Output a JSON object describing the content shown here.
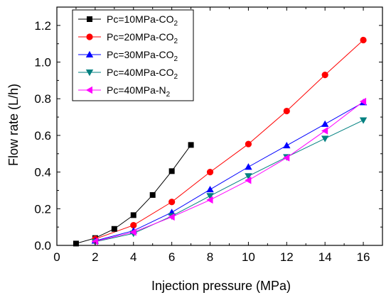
{
  "chart_data": {
    "type": "line",
    "xlabel": "Injection pressure (MPa)",
    "ylabel": "Flow rate (L/h)",
    "xlim": [
      0,
      17
    ],
    "ylim": [
      0,
      1.3
    ],
    "x_ticks": [
      0,
      2,
      4,
      6,
      8,
      10,
      12,
      14,
      16
    ],
    "y_ticks": [
      0.0,
      0.2,
      0.4,
      0.6,
      0.8,
      1.0,
      1.2
    ],
    "x_tick_labels": [
      "0",
      "2",
      "4",
      "6",
      "8",
      "10",
      "12",
      "14",
      "16"
    ],
    "y_tick_labels": [
      "0.0",
      "0.2",
      "0.4",
      "0.6",
      "0.8",
      "1.0",
      "1.2"
    ],
    "legend_position": "top-left",
    "grid": false,
    "series": [
      {
        "name": "Pc=10MPa-CO",
        "subscript": "2",
        "color": "#000000",
        "marker": "square",
        "x": [
          1,
          2,
          3,
          4,
          5,
          6,
          7
        ],
        "y": [
          0.01,
          0.04,
          0.09,
          0.165,
          0.275,
          0.405,
          0.548
        ]
      },
      {
        "name": "Pc=20MPa-CO",
        "subscript": "2",
        "color": "#ff0000",
        "marker": "circle",
        "x": [
          2,
          4,
          6,
          8,
          10,
          12,
          14,
          16
        ],
        "y": [
          0.035,
          0.11,
          0.237,
          0.4,
          0.553,
          0.733,
          0.93,
          1.12
        ]
      },
      {
        "name": "Pc=30MPa-CO",
        "subscript": "2",
        "color": "#0000ff",
        "marker": "triangle-up",
        "x": [
          2,
          4,
          6,
          8,
          10,
          12,
          14,
          16
        ],
        "y": [
          0.025,
          0.08,
          0.18,
          0.305,
          0.428,
          0.545,
          0.662,
          0.78
        ]
      },
      {
        "name": "Pc=40MPa-CO",
        "subscript": "2",
        "color": "#008080",
        "marker": "triangle-down",
        "x": [
          2,
          4,
          6,
          8,
          10,
          12,
          14,
          16
        ],
        "y": [
          0.02,
          0.065,
          0.16,
          0.27,
          0.378,
          0.482,
          0.583,
          0.683
        ]
      },
      {
        "name": "Pc=40MPa-N",
        "subscript": "2",
        "color": "#ff00ff",
        "marker": "triangle-left",
        "x": [
          2,
          4,
          6,
          8,
          10,
          12,
          14,
          16
        ],
        "y": [
          0.022,
          0.072,
          0.155,
          0.248,
          0.355,
          0.478,
          0.625,
          0.785
        ]
      }
    ]
  }
}
